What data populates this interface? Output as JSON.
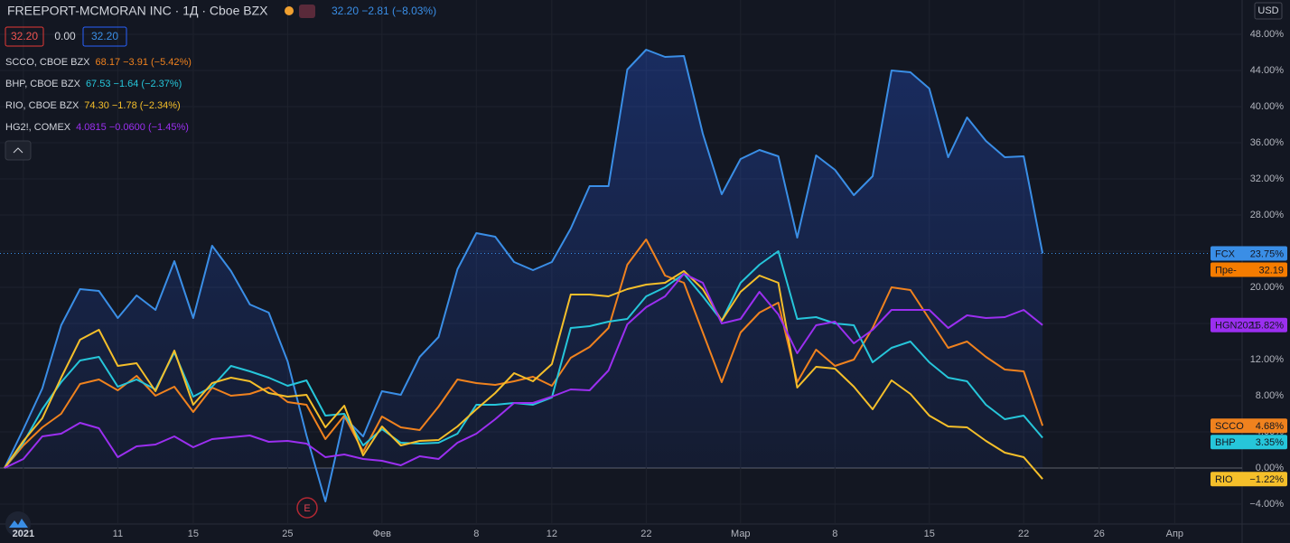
{
  "chart_data": {
    "type": "line",
    "title": "FREEPORT-MCMORAN INC · 1Д · Cboe BZX",
    "quote": "32.20 −2.81 (−8.03%)",
    "boxes": [
      "32.20",
      "0.00",
      "32.20"
    ],
    "currency": "USD",
    "event_marker": "E",
    "price_tag": {
      "name": "Пре-",
      "label": "32.19"
    },
    "grid": true,
    "ylim": [
      -6.2,
      51.8
    ],
    "yticks": [
      {
        "value": -4,
        "label": "−4.00%"
      },
      {
        "value": 0,
        "label": "0.00%"
      },
      {
        "value": 4,
        "label": "4.00%"
      },
      {
        "value": 8,
        "label": "8.00%"
      },
      {
        "value": 12,
        "label": "12.00%"
      },
      {
        "value": 16,
        "label": "16.00%"
      },
      {
        "value": 20,
        "label": "20.00%"
      },
      {
        "value": 24,
        "label": "24.00%"
      },
      {
        "value": 28,
        "label": "28.00%"
      },
      {
        "value": 32,
        "label": "32.00%"
      },
      {
        "value": 36,
        "label": "36.00%"
      },
      {
        "value": 40,
        "label": "40.00%"
      },
      {
        "value": 44,
        "label": "44.00%"
      },
      {
        "value": 48,
        "label": "48.00%"
      }
    ],
    "categories": [
      null,
      "2021",
      null,
      null,
      null,
      null,
      "11",
      null,
      null,
      null,
      "15",
      null,
      null,
      null,
      null,
      "25",
      null,
      null,
      null,
      null,
      "Фев",
      null,
      null,
      null,
      null,
      "8",
      null,
      null,
      null,
      "12",
      null,
      null,
      null,
      null,
      "22",
      null,
      null,
      null,
      null,
      "Мар",
      null,
      null,
      null,
      null,
      "8",
      null,
      null,
      null,
      null,
      "15",
      null,
      null,
      null,
      null,
      "22",
      null,
      null,
      null,
      "26",
      null,
      null,
      null,
      "Апр",
      null,
      null,
      null
    ],
    "series": [
      {
        "name": "FCX",
        "color": "#3a8ee6",
        "area": true,
        "last_label": "23.75%",
        "values": [
          0,
          4.3,
          8.8,
          15.8,
          19.8,
          19.6,
          16.6,
          19.1,
          17.5,
          22.9,
          16.6,
          24.6,
          21.8,
          18.1,
          17.2,
          11.8,
          3.6,
          -3.7,
          5.6,
          3.5,
          8.5,
          8.1,
          12.3,
          14.5,
          22.0,
          26.0,
          25.6,
          22.8,
          21.9,
          22.8,
          26.5,
          31.2,
          31.2,
          44.1,
          46.3,
          45.5,
          45.6,
          37.0,
          30.3,
          34.2,
          35.2,
          34.5,
          25.5,
          34.6,
          33.0,
          30.2,
          32.3,
          44.0,
          43.8,
          42.0,
          34.4,
          38.8,
          36.2,
          34.4,
          34.5,
          23.75,
          null,
          null,
          null,
          null,
          null,
          null,
          null,
          null,
          null,
          null
        ]
      },
      {
        "name": "SCCO",
        "legend": "SCCO, CBOE BZX",
        "quote": "68.17 −3.91 (−5.42%)",
        "color": "#f0821e",
        "last_label": "4.68%",
        "values": [
          0,
          2.5,
          4.5,
          6.0,
          9.3,
          9.8,
          8.6,
          10.2,
          8.0,
          9.0,
          6.2,
          8.9,
          8.0,
          8.2,
          8.9,
          7.3,
          7.0,
          3.2,
          5.8,
          1.8,
          5.7,
          4.5,
          4.2,
          6.8,
          9.8,
          9.4,
          9.2,
          9.6,
          10.1,
          9.1,
          12.2,
          13.4,
          15.5,
          22.5,
          25.3,
          21.3,
          20.5,
          15.0,
          9.5,
          15.0,
          17.2,
          18.3,
          9.5,
          13.1,
          11.3,
          12.0,
          15.5,
          20.0,
          19.7,
          16.5,
          13.3,
          14.0,
          12.3,
          10.9,
          10.7,
          4.68,
          null,
          null,
          null,
          null,
          null,
          null,
          null,
          null,
          null,
          null
        ]
      },
      {
        "name": "BHP",
        "legend": "BHP, CBOE BZX",
        "quote": "67.53 −1.64 (−2.37%)",
        "color": "#26c6da",
        "last_label": "3.35%",
        "values": [
          0,
          2.8,
          6.5,
          9.5,
          11.9,
          12.3,
          9.0,
          9.8,
          8.7,
          12.8,
          7.9,
          9.0,
          11.3,
          10.7,
          10.0,
          9.1,
          9.7,
          5.8,
          6.0,
          2.5,
          4.3,
          2.8,
          2.7,
          2.8,
          3.8,
          7.0,
          7.0,
          7.2,
          7.0,
          7.8,
          15.5,
          15.7,
          16.2,
          16.5,
          19.0,
          20.0,
          21.5,
          19.0,
          16.3,
          20.5,
          22.5,
          24.0,
          16.5,
          16.7,
          16.0,
          15.8,
          11.7,
          13.3,
          14.0,
          11.7,
          10.0,
          9.6,
          7.0,
          5.4,
          5.8,
          3.35,
          null,
          null,
          null,
          null,
          null,
          null,
          null,
          null,
          null,
          null
        ]
      },
      {
        "name": "RIO",
        "legend": "RIO, CBOE BZX",
        "quote": "74.30 −1.78 (−2.34%)",
        "color": "#f5bf2a",
        "last_label": "−1.22%",
        "values": [
          0,
          3.0,
          5.5,
          10.0,
          14.2,
          15.3,
          11.3,
          11.6,
          8.5,
          13.0,
          7.0,
          9.4,
          10.0,
          9.6,
          8.3,
          7.9,
          8.1,
          4.5,
          6.9,
          1.4,
          4.6,
          2.5,
          3.0,
          3.1,
          4.6,
          6.5,
          8.3,
          10.5,
          9.6,
          11.5,
          19.2,
          19.2,
          19.0,
          19.8,
          20.3,
          20.5,
          21.8,
          19.8,
          16.3,
          19.5,
          21.3,
          20.5,
          8.9,
          11.2,
          11.0,
          9.0,
          6.5,
          9.7,
          8.2,
          5.8,
          4.6,
          4.5,
          3.0,
          1.7,
          1.2,
          -1.22,
          null,
          null,
          null,
          null,
          null,
          null,
          null,
          null,
          null,
          null
        ]
      },
      {
        "name": "HGN2021",
        "legend": "HG2!, COMEX",
        "quote": "4.0815 −0.0600 (−1.45%)",
        "color": "#9b2ff0",
        "last_label": "15.82%",
        "values": [
          0,
          1.0,
          3.5,
          3.8,
          5.0,
          4.4,
          1.2,
          2.4,
          2.6,
          3.5,
          2.3,
          3.2,
          3.4,
          3.6,
          2.9,
          3.0,
          2.7,
          1.2,
          1.5,
          1.0,
          0.8,
          0.3,
          1.3,
          1.0,
          2.8,
          3.8,
          5.4,
          7.2,
          7.2,
          7.9,
          8.7,
          8.6,
          10.8,
          15.9,
          17.8,
          19.0,
          21.5,
          20.5,
          16.0,
          16.5,
          19.5,
          17.0,
          12.7,
          15.8,
          16.2,
          13.8,
          15.3,
          17.5,
          17.5,
          17.5,
          15.5,
          16.9,
          16.6,
          16.7,
          17.5,
          15.82,
          null,
          null,
          null,
          null,
          null,
          null,
          null,
          null,
          null,
          null
        ]
      }
    ]
  }
}
